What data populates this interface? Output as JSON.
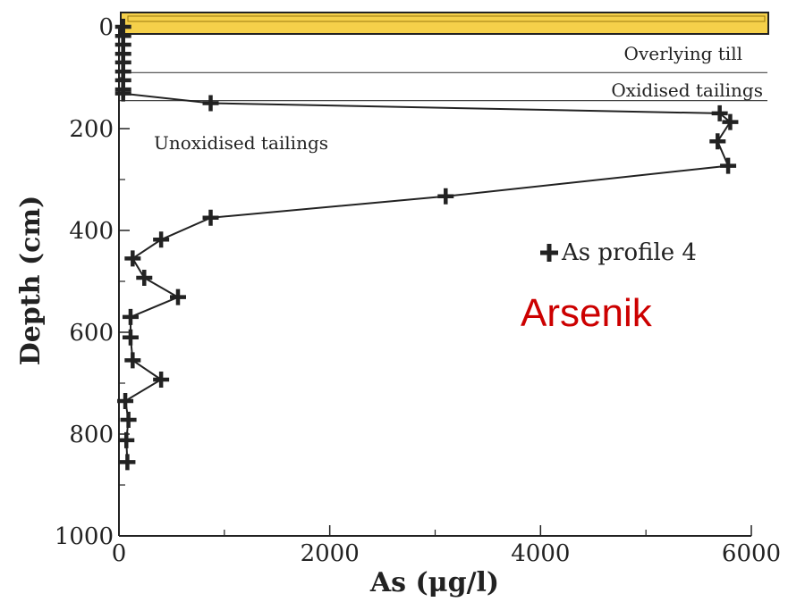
{
  "chart_data": {
    "type": "line",
    "xlabel": "As (μg/l)",
    "ylabel": "Depth (cm)",
    "xlim": [
      0,
      6000
    ],
    "ylim": [
      0,
      1000
    ],
    "y_inverted": true,
    "x_ticks": [
      0,
      2000,
      4000,
      6000
    ],
    "y_ticks": [
      0,
      200,
      400,
      600,
      800,
      1000
    ],
    "grid": false,
    "legend_position": "right-middle",
    "series": [
      {
        "name": "As profile 4",
        "marker": "plus",
        "color": "#222222",
        "points": [
          [
            40,
            0
          ],
          [
            40,
            18
          ],
          [
            40,
            35
          ],
          [
            40,
            53
          ],
          [
            40,
            70
          ],
          [
            40,
            88
          ],
          [
            40,
            105
          ],
          [
            40,
            123
          ],
          [
            40,
            131
          ],
          [
            870,
            150
          ],
          [
            5700,
            170
          ],
          [
            5800,
            187
          ],
          [
            5680,
            225
          ],
          [
            5780,
            273
          ],
          [
            3100,
            333
          ],
          [
            870,
            375
          ],
          [
            400,
            418
          ],
          [
            130,
            455
          ],
          [
            240,
            493
          ],
          [
            560,
            531
          ],
          [
            110,
            570
          ],
          [
            110,
            610
          ],
          [
            130,
            655
          ],
          [
            400,
            693
          ],
          [
            60,
            735
          ],
          [
            90,
            772
          ],
          [
            70,
            812
          ],
          [
            80,
            855
          ]
        ]
      }
    ],
    "layers": [
      {
        "label": "Overlying till",
        "boundary_depth": 90
      },
      {
        "label": "Oxidised tailings",
        "boundary_depth": 145
      },
      {
        "label": "Unoxidised tailings"
      }
    ],
    "annotations": {
      "big_label": "Arsenik",
      "big_label_color": "#cc0000",
      "surface_band_color": "#f5d04a"
    }
  }
}
